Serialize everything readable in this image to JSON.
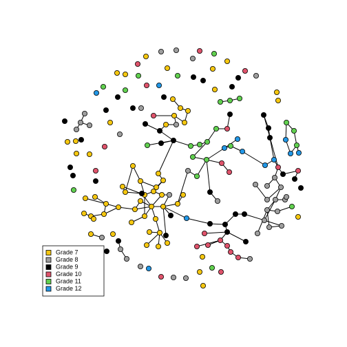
{
  "legend": {
    "items": [
      {
        "label": "Grade 7",
        "color": "#f5c710"
      },
      {
        "label": "Grade 8",
        "color": "#9e9e9e"
      },
      {
        "label": "Grade 9",
        "color": "#000000"
      },
      {
        "label": "Grade 10",
        "color": "#df536b"
      },
      {
        "label": "Grade 11",
        "color": "#61d04f"
      },
      {
        "label": "Grade 12",
        "color": "#2297e6"
      }
    ]
  }
}
